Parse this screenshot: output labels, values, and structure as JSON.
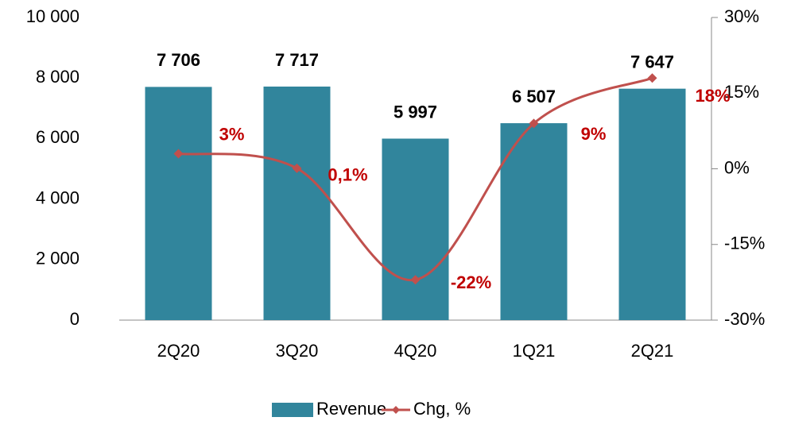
{
  "chart_data": {
    "type": "bar_line",
    "categories": [
      "2Q20",
      "3Q20",
      "4Q20",
      "1Q21",
      "2Q21"
    ],
    "series": [
      {
        "name": "Revenue",
        "type": "bar",
        "color": "#31859c",
        "values": [
          7706,
          7717,
          5997,
          6507,
          7647
        ],
        "value_labels": [
          "7 706",
          "7 717",
          "5 997",
          "6 507",
          "7 647"
        ]
      },
      {
        "name": "Chg, %",
        "type": "line",
        "axis": "y2",
        "color": "#c0504d",
        "values": [
          3,
          0.1,
          -22,
          9,
          18
        ],
        "value_labels": [
          "3%",
          "0,1%",
          "-22%",
          "9%",
          "18%"
        ]
      }
    ],
    "ylim": [
      0,
      10000
    ],
    "yticks": [
      0,
      {
        "value": 2000,
        "label": "2 000"
      },
      {
        "value": 4000,
        "label": "4 000"
      },
      {
        "value": 6000,
        "label": "6 000"
      },
      {
        "value": 8000,
        "label": "8 000"
      },
      {
        "value": 10000,
        "label": "10 000"
      }
    ],
    "y2lim": [
      -30,
      30
    ],
    "y2ticks": [
      {
        "value": -30,
        "label": "-30%"
      },
      {
        "value": -15,
        "label": "-15%"
      },
      {
        "value": 0,
        "label": "0%"
      },
      {
        "value": 15,
        "label": "15%"
      },
      {
        "value": 30,
        "label": "30%"
      }
    ],
    "legend": "bottom"
  }
}
